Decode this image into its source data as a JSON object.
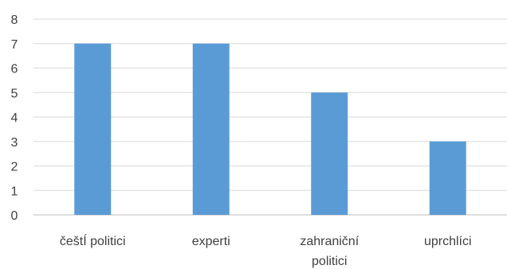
{
  "chart_data": {
    "type": "bar",
    "categories": [
      [
        "češtÍ politici"
      ],
      [
        "experti"
      ],
      [
        "zahraniční",
        "politici"
      ],
      [
        "uprchlíci"
      ]
    ],
    "values": [
      7,
      7,
      5,
      3
    ],
    "ylim": [
      0,
      8
    ],
    "yticks": [
      0,
      1,
      2,
      3,
      4,
      5,
      6,
      7,
      8
    ],
    "grid": true,
    "legend": "none",
    "bar_color": "#5b9bd5",
    "grid_color": "#d9d9d9",
    "text_color": "#404040"
  }
}
